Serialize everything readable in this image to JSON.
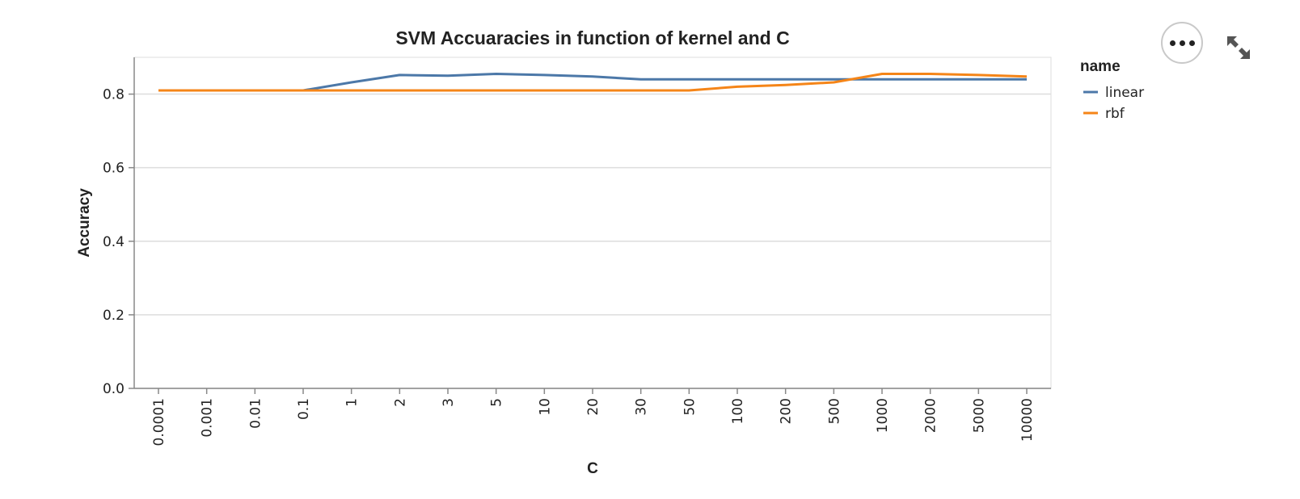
{
  "chart_data": {
    "type": "line",
    "title": "SVM Accuaracies in function of kernel and C",
    "xlabel": "C",
    "ylabel": "Accuracy",
    "categories": [
      "0.0001",
      "0.001",
      "0.01",
      "0.1",
      "1",
      "2",
      "3",
      "5",
      "10",
      "20",
      "30",
      "50",
      "100",
      "200",
      "500",
      "1000",
      "2000",
      "5000",
      "10000"
    ],
    "ylim": [
      0,
      0.9
    ],
    "yticks": [
      0.0,
      0.2,
      0.4,
      0.6,
      0.8
    ],
    "ytick_labels": [
      "0.0",
      "0.2",
      "0.4",
      "0.6",
      "0.8"
    ],
    "grid": true,
    "legend": {
      "title": "name",
      "position": "right"
    },
    "series": [
      {
        "name": "linear",
        "color": "#4c78a8",
        "values": [
          0.81,
          0.81,
          0.81,
          0.81,
          0.832,
          0.852,
          0.85,
          0.855,
          0.852,
          0.848,
          0.84,
          0.84,
          0.84,
          0.84,
          0.84,
          0.84,
          0.84,
          0.84,
          0.84
        ]
      },
      {
        "name": "rbf",
        "color": "#f58518",
        "values": [
          0.81,
          0.81,
          0.81,
          0.81,
          0.81,
          0.81,
          0.81,
          0.81,
          0.81,
          0.81,
          0.81,
          0.81,
          0.82,
          0.825,
          0.832,
          0.855,
          0.855,
          0.852,
          0.848
        ]
      }
    ]
  },
  "toolbar": {
    "menu_icon": "more-horizontal-icon",
    "expand_icon": "expand-icon"
  }
}
